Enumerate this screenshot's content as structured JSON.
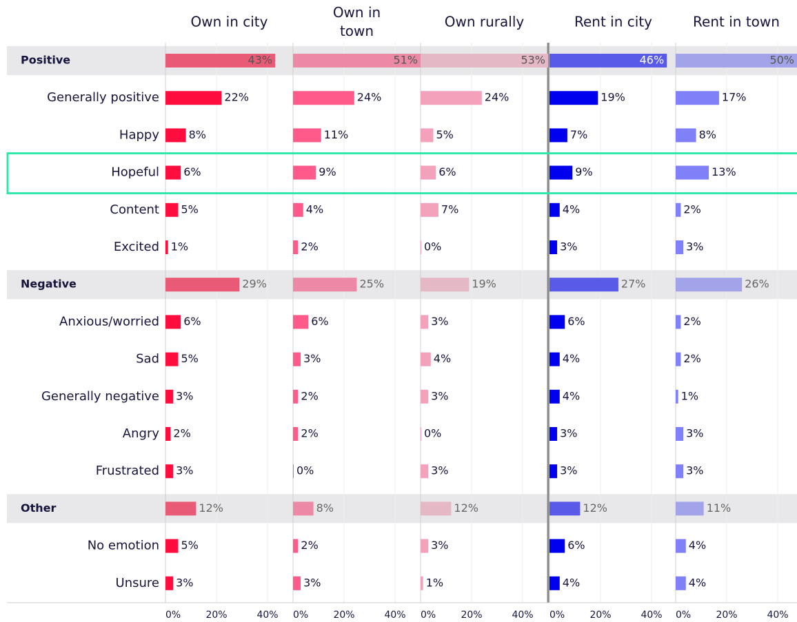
{
  "chart_data": {
    "type": "bar",
    "orientation": "horizontal",
    "categories": [
      "Positive",
      "Generally positive",
      "Happy",
      "Hopeful",
      "Content",
      "Excited",
      "Negative",
      "Anxious/worried",
      "Sad",
      "Generally negative",
      "Angry",
      "Frustrated",
      "Other",
      "No emotion",
      "Unsure"
    ],
    "header_rows": [
      0,
      6,
      12
    ],
    "highlight_row": 3,
    "highlight_color": "#2ee8a8",
    "series": [
      {
        "name": "Own in city",
        "color": "#ff0d3f",
        "header_color": "#e85a75",
        "values": [
          43,
          22,
          8,
          6,
          5,
          1,
          29,
          6,
          5,
          3,
          2,
          3,
          12,
          5,
          3
        ],
        "value_labels": [
          "43%",
          "22%",
          "8%",
          "6%",
          "5%",
          "1%",
          "29%",
          "6%",
          "5%",
          "3%",
          "2%",
          "3%",
          "12%",
          "5%",
          "3%"
        ]
      },
      {
        "name": "Own in town",
        "color": "#ff5a8a",
        "header_color": "#ec8aa5",
        "values": [
          51,
          24,
          11,
          9,
          4,
          2,
          25,
          6,
          3,
          2,
          2,
          0,
          8,
          2,
          3
        ],
        "value_labels": [
          "51%",
          "24%",
          "11%",
          "9%",
          "4%",
          "2%",
          "25%",
          "6%",
          "3%",
          "2%",
          "2%",
          "0%",
          "8%",
          "2%",
          "3%"
        ]
      },
      {
        "name": "Own rurally",
        "color": "#f4a1bb",
        "header_color": "#e5b8c6",
        "values": [
          53,
          24,
          5,
          6,
          7,
          0,
          19,
          3,
          4,
          3,
          0,
          3,
          12,
          3,
          1
        ],
        "value_labels": [
          "53%",
          "24%",
          "5%",
          "6%",
          "7%",
          "0%",
          "19%",
          "3%",
          "4%",
          "3%",
          "0%",
          "3%",
          "12%",
          "3%",
          "1%"
        ]
      },
      {
        "name": "Rent in city",
        "color": "#0000ee",
        "header_color": "#5a5ae8",
        "values": [
          46,
          19,
          7,
          9,
          4,
          3,
          27,
          6,
          4,
          4,
          3,
          3,
          12,
          6,
          4
        ],
        "value_labels": [
          "46%",
          "19%",
          "7%",
          "9%",
          "4%",
          "3%",
          "27%",
          "6%",
          "4%",
          "4%",
          "3%",
          "3%",
          "12%",
          "6%",
          "4%"
        ]
      },
      {
        "name": "Rent in town",
        "color": "#8080f8",
        "header_color": "#a3a3ea",
        "values": [
          50,
          17,
          8,
          13,
          2,
          3,
          26,
          2,
          2,
          1,
          3,
          3,
          11,
          4,
          4
        ],
        "value_labels": [
          "50%",
          "17%",
          "8%",
          "13%",
          "2%",
          "3%",
          "26%",
          "2%",
          "2%",
          "1%",
          "3%",
          "3%",
          "11%",
          "4%",
          "4%"
        ]
      }
    ],
    "xlim": [
      0,
      50
    ],
    "xticks": [
      {
        "value": 0,
        "label": "0%"
      },
      {
        "value": 20,
        "label": "20%"
      },
      {
        "value": 40,
        "label": "40%"
      }
    ],
    "grid": true
  }
}
